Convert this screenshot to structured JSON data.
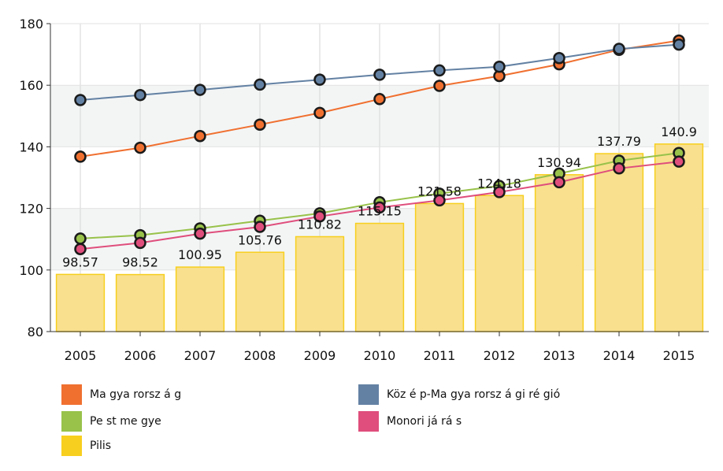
{
  "chart_data": {
    "type": "bar+line",
    "categories": [
      "2005",
      "2006",
      "2007",
      "2008",
      "2009",
      "2010",
      "2011",
      "2012",
      "2013",
      "2014",
      "2015"
    ],
    "ylim": [
      80,
      180
    ],
    "yticks": [
      80,
      100,
      120,
      140,
      160,
      180
    ],
    "grid": true,
    "legend_position": "bottom",
    "bar_series": {
      "name": "Pilis",
      "color": "#f7cf1e",
      "fill": "#f8e08e",
      "values": [
        98.57,
        98.52,
        100.95,
        105.76,
        110.82,
        115.15,
        121.58,
        124.18,
        130.94,
        137.79,
        140.9
      ],
      "labels": [
        "98.57",
        "98.52",
        "100.95",
        "105.76",
        "110.82",
        "115.15",
        "121.58",
        "124.18",
        "130.94",
        "137.79",
        "140.9"
      ]
    },
    "line_series": [
      {
        "name": "Magyarország",
        "color": "#f07030",
        "values": [
          136.8,
          139.7,
          143.5,
          147.2,
          151.0,
          155.5,
          159.8,
          163.0,
          166.8,
          171.5,
          174.5
        ]
      },
      {
        "name": "Közép-Magyarországi régió",
        "color": "#6381a3",
        "values": [
          155.2,
          156.8,
          158.5,
          160.2,
          161.8,
          163.4,
          164.8,
          166.0,
          168.8,
          171.8,
          173.2
        ]
      },
      {
        "name": "Pest megye",
        "color": "#98c24a",
        "values": [
          110.2,
          111.3,
          113.5,
          116.0,
          118.4,
          122.0,
          124.8,
          127.3,
          131.3,
          135.5,
          138.0
        ]
      },
      {
        "name": "Monori járás",
        "color": "#df4e7c",
        "values": [
          106.8,
          108.8,
          111.8,
          114.0,
          117.4,
          120.3,
          122.6,
          125.3,
          128.5,
          133.0,
          135.2
        ]
      }
    ]
  },
  "legend": [
    {
      "label": "Ma gya rorsz á g",
      "color": "#f07030"
    },
    {
      "label": "Köz é p-Ma gya rorsz á gi ré gió",
      "color": "#6381a3"
    },
    {
      "label": "Pe st me gye",
      "color": "#98c24a"
    },
    {
      "label": "Monori já rá s",
      "color": "#df4e7c"
    },
    {
      "label": "Pilis",
      "color": "#f7cf1e"
    }
  ]
}
